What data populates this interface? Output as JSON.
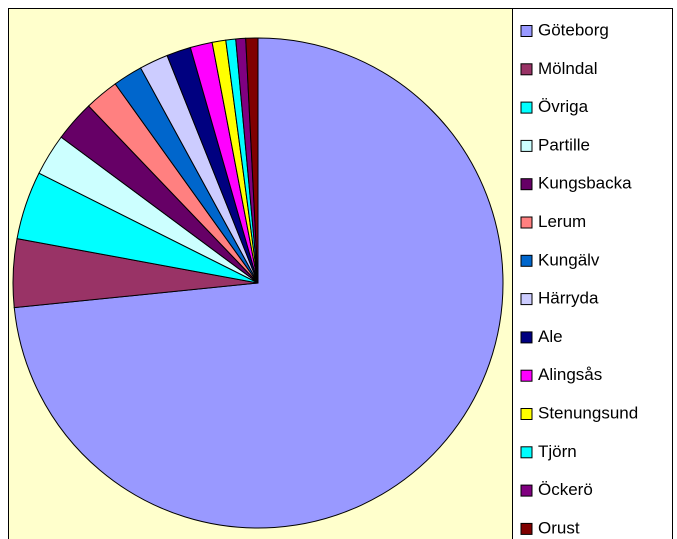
{
  "chart_data": {
    "type": "pie",
    "categories": [
      "Göteborg",
      "Mölndal",
      "Övriga",
      "Partille",
      "Kungsbacka",
      "Lerum",
      "Kungälv",
      "Härryda",
      "Ale",
      "Alingsås",
      "Stenungsund",
      "Tjörn",
      "Öckerö",
      "Orust"
    ],
    "values": [
      73.4,
      4.5,
      4.5,
      2.75,
      2.7,
      2.25,
      1.95,
      1.9,
      1.6,
      1.45,
      0.9,
      0.65,
      0.65,
      0.8
    ],
    "colors": [
      "#9999ff",
      "#993366",
      "#00ffff",
      "#ccffff",
      "#660066",
      "#ff8080",
      "#0066cc",
      "#ccccff",
      "#000080",
      "#ff00ff",
      "#ffff00",
      "#00ffff",
      "#800080",
      "#800000"
    ],
    "legend": "right"
  }
}
